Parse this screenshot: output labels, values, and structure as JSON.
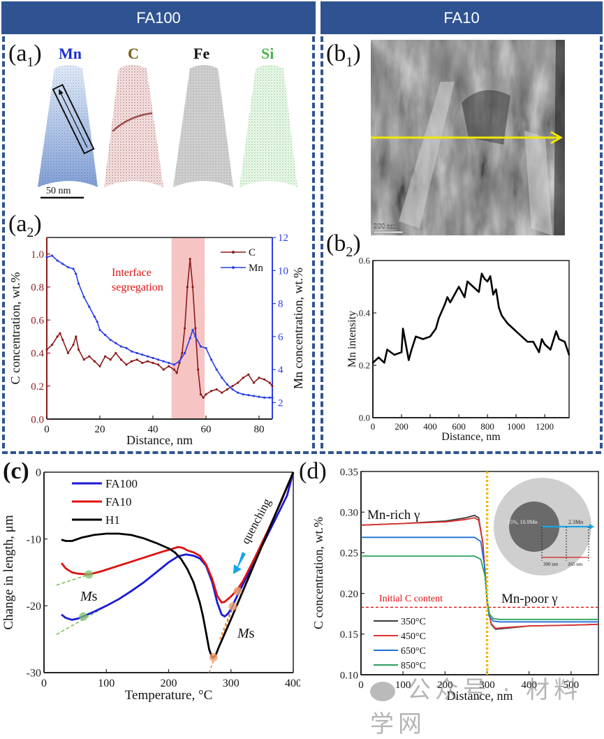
{
  "headers": {
    "left": "FA100",
    "right": "FA10"
  },
  "panel_labels": {
    "a1": "a",
    "a1_sub": "1",
    "a2": "a",
    "a2_sub": "2",
    "b1": "b",
    "b1_sub": "1",
    "b2": "b",
    "b2_sub": "2",
    "c": "c",
    "d": "d"
  },
  "apt_maps": {
    "elements": [
      {
        "label": "Mn",
        "color": "#1a2fd0"
      },
      {
        "label": "C",
        "color": "#7a5a10"
      },
      {
        "label": "Fe",
        "color": "#111111"
      },
      {
        "label": "Si",
        "color": "#4bb34b"
      }
    ],
    "scale_bar": "50 nm"
  },
  "tem": {
    "scale_bar": "200 nm"
  },
  "chart_data": [
    {
      "id": "a2",
      "type": "line",
      "xlabel": "Distance, nm",
      "ylabel": "C concentration, wt.%",
      "y2label": "Mn concentration, wt.%",
      "xlim": [
        0,
        85
      ],
      "ylim": [
        0,
        1.1
      ],
      "y2lim": [
        1,
        12
      ],
      "xticks": [
        0,
        20,
        40,
        60,
        80
      ],
      "yticks": [
        0.0,
        0.2,
        0.4,
        0.6,
        0.8,
        1.0
      ],
      "ytick_labels": [
        "0.0",
        "0.2",
        "0.4",
        "0.6",
        "0.8",
        "1.0"
      ],
      "y2ticks": [
        2,
        4,
        6,
        8,
        10,
        12
      ],
      "annotation": {
        "text_line1": "Interface",
        "text_line2": "segregation",
        "shaded_x": [
          47,
          59.5
        ]
      },
      "legend_position": "top-right",
      "series": [
        {
          "name": "C",
          "color": "#8b1a1a",
          "axis": "left",
          "x": [
            0,
            2,
            4,
            5,
            6,
            8,
            10,
            11,
            12,
            14,
            16,
            18,
            20,
            22,
            24,
            26,
            28,
            30,
            32,
            34,
            36,
            38,
            40,
            42,
            44,
            46,
            48,
            49,
            50,
            51,
            52,
            53,
            54,
            55,
            56,
            57,
            58,
            59,
            60,
            62,
            64,
            66,
            68,
            70,
            72,
            74,
            76,
            78,
            80,
            82,
            84,
            85
          ],
          "y": [
            0.42,
            0.45,
            0.5,
            0.52,
            0.48,
            0.4,
            0.45,
            0.5,
            0.42,
            0.36,
            0.38,
            0.35,
            0.32,
            0.38,
            0.36,
            0.4,
            0.36,
            0.33,
            0.35,
            0.36,
            0.34,
            0.35,
            0.34,
            0.33,
            0.3,
            0.32,
            0.3,
            0.28,
            0.34,
            0.4,
            0.55,
            0.8,
            0.97,
            0.8,
            0.55,
            0.3,
            0.15,
            0.13,
            0.15,
            0.17,
            0.18,
            0.16,
            0.18,
            0.2,
            0.22,
            0.25,
            0.27,
            0.22,
            0.25,
            0.24,
            0.22,
            0.2
          ]
        },
        {
          "name": "Mn",
          "color": "#2a3ee8",
          "axis": "right",
          "x": [
            0,
            2,
            4,
            6,
            8,
            10,
            11,
            12,
            14,
            16,
            18,
            19,
            20,
            22,
            24,
            26,
            28,
            30,
            32,
            34,
            36,
            38,
            40,
            42,
            44,
            46,
            48,
            50,
            52,
            54,
            55,
            56,
            58,
            60,
            62,
            64,
            66,
            68,
            70,
            72,
            74,
            76,
            78,
            80,
            82,
            84,
            85
          ],
          "y": [
            10.8,
            10.9,
            10.6,
            10.4,
            10.2,
            10.1,
            9.8,
            9.2,
            8.4,
            7.8,
            7.2,
            6.9,
            6.4,
            6.1,
            5.8,
            5.6,
            5.4,
            5.3,
            5.1,
            5.0,
            4.9,
            4.8,
            4.7,
            4.6,
            4.5,
            4.4,
            4.3,
            4.5,
            5.0,
            5.9,
            6.4,
            6.0,
            5.4,
            5.3,
            4.6,
            4.0,
            3.5,
            3.1,
            2.8,
            2.6,
            2.5,
            2.45,
            2.4,
            2.35,
            2.3,
            2.3,
            2.3
          ]
        }
      ]
    },
    {
      "id": "b2",
      "type": "line",
      "xlabel": "Distance, nm",
      "ylabel": "Mn intensity",
      "xlim": [
        0,
        1370
      ],
      "ylim": [
        0,
        0.6
      ],
      "xticks": [
        0,
        200,
        400,
        600,
        800,
        1000,
        1200
      ],
      "yticks": [
        0.0,
        0.2,
        0.4,
        0.6
      ],
      "ytick_labels": [
        "0.0",
        "0.2",
        "0.4",
        "0.6"
      ],
      "series": [
        {
          "name": "Mn",
          "color": "#000000",
          "x": [
            0,
            40,
            80,
            100,
            150,
            200,
            210,
            250,
            270,
            300,
            350,
            400,
            440,
            460,
            500,
            520,
            540,
            580,
            600,
            640,
            660,
            700,
            740,
            760,
            780,
            800,
            820,
            840,
            860,
            880,
            900,
            940,
            980,
            1000,
            1040,
            1080,
            1120,
            1160,
            1180,
            1200,
            1240,
            1280,
            1300,
            1340,
            1370
          ],
          "y": [
            0.21,
            0.23,
            0.21,
            0.26,
            0.24,
            0.25,
            0.34,
            0.22,
            0.26,
            0.31,
            0.3,
            0.31,
            0.34,
            0.38,
            0.43,
            0.46,
            0.44,
            0.48,
            0.5,
            0.46,
            0.52,
            0.5,
            0.48,
            0.55,
            0.53,
            0.52,
            0.54,
            0.47,
            0.49,
            0.42,
            0.39,
            0.36,
            0.34,
            0.33,
            0.31,
            0.29,
            0.29,
            0.25,
            0.3,
            0.28,
            0.26,
            0.33,
            0.3,
            0.29,
            0.24
          ]
        }
      ]
    },
    {
      "id": "c",
      "type": "line",
      "xlabel": "Temperature, °C",
      "ylabel": "Change in length, μm",
      "xlim": [
        0,
        400
      ],
      "ylim": [
        -30,
        0
      ],
      "xticks": [
        0,
        100,
        200,
        300,
        400
      ],
      "yticks": [
        0,
        -10,
        -20,
        -30
      ],
      "ytick_labels": [
        "0",
        "-10",
        "-20",
        "-30"
      ],
      "legend_position": "top-left",
      "annotations": [
        {
          "text": "quenching",
          "arrow_color": "#1aa3e8"
        },
        {
          "text": "Ms",
          "italic_part": "M",
          "near": "green markers"
        },
        {
          "text": "Ms",
          "italic_part": "M",
          "near": "orange markers"
        }
      ],
      "ms_points_green": [
        {
          "x": 72,
          "y": -15.3
        },
        {
          "x": 63,
          "y": -21.6
        }
      ],
      "ms_points_orange": [
        {
          "x": 311,
          "y": -17.8
        },
        {
          "x": 303,
          "y": -20.1
        },
        {
          "x": 272,
          "y": -27.7
        }
      ],
      "series": [
        {
          "name": "FA100",
          "color": "#1a1ad8",
          "x": [
            28,
            35,
            45,
            55,
            65,
            80,
            100,
            120,
            140,
            160,
            180,
            200,
            215,
            228,
            240,
            250,
            260,
            270,
            278,
            285,
            290,
            295,
            300,
            310,
            330,
            350,
            370,
            390,
            400
          ],
          "y": [
            -21.3,
            -21.8,
            -22.1,
            -21.9,
            -21.5,
            -20.9,
            -20.0,
            -19.0,
            -17.8,
            -16.5,
            -15.0,
            -13.5,
            -12.6,
            -12.3,
            -12.5,
            -12.9,
            -14.0,
            -16.5,
            -19.5,
            -21.3,
            -21.6,
            -21.2,
            -20.5,
            -18.5,
            -14.8,
            -11.0,
            -7.3,
            -3.5,
            0
          ]
        },
        {
          "name": "FA10",
          "color": "#e01010",
          "x": [
            28,
            35,
            45,
            55,
            72,
            90,
            110,
            130,
            150,
            170,
            190,
            205,
            215,
            222,
            230,
            240,
            250,
            260,
            270,
            278,
            285,
            290,
            295,
            300,
            310,
            320,
            340,
            360,
            380,
            400
          ],
          "y": [
            -13.6,
            -14.4,
            -15.0,
            -15.2,
            -15.3,
            -14.9,
            -14.3,
            -13.7,
            -13.1,
            -12.5,
            -11.9,
            -11.5,
            -11.2,
            -11.3,
            -11.7,
            -12.0,
            -12.5,
            -13.8,
            -16.0,
            -18.5,
            -19.5,
            -19.4,
            -19.0,
            -18.6,
            -17.6,
            -16.2,
            -12.5,
            -8.6,
            -4.5,
            0
          ]
        },
        {
          "name": "H1",
          "color": "#000000",
          "x": [
            28,
            35,
            45,
            60,
            80,
            100,
            120,
            140,
            160,
            180,
            200,
            210,
            220,
            230,
            240,
            250,
            255,
            260,
            265,
            270,
            275,
            280,
            300,
            320,
            340,
            360,
            380,
            400
          ],
          "y": [
            -10.1,
            -10.3,
            -10.3,
            -9.8,
            -9.4,
            -9.2,
            -9.2,
            -9.4,
            -9.9,
            -10.6,
            -11.4,
            -12.0,
            -13.0,
            -14.5,
            -16.5,
            -19.5,
            -21.5,
            -24.0,
            -26.5,
            -27.8,
            -27.5,
            -26.3,
            -22.0,
            -17.6,
            -13.2,
            -8.8,
            -4.4,
            0
          ]
        }
      ]
    },
    {
      "id": "d",
      "type": "line",
      "xlabel": "Distance, nm",
      "ylabel": "C concentration, wt.%",
      "xlim": [
        0,
        565
      ],
      "ylim": [
        0.1,
        0.35
      ],
      "xticks": [
        0,
        100,
        200,
        300,
        400,
        500
      ],
      "yticks": [
        0.1,
        0.15,
        0.2,
        0.25,
        0.3,
        0.35
      ],
      "ytick_labels": [
        "0.10",
        "0.15",
        "0.20",
        "0.25",
        "0.30",
        "0.35"
      ],
      "interface_x": 300,
      "initial_c": 0.183,
      "annotations": [
        {
          "text": "Mn-rich γ"
        },
        {
          "text": "Mn-poor γ"
        },
        {
          "text": "Initial C content",
          "color": "#e01010"
        }
      ],
      "inset": {
        "core_label": "15%, 10.9Mn",
        "shell_label": "2.3Mn",
        "dim1": "300 nm",
        "dim2": "265 nm"
      },
      "legend_position": "bottom-left",
      "series": [
        {
          "name": "350°C",
          "color": "#3a3a3a",
          "x": [
            0,
            100,
            200,
            250,
            270,
            280,
            290,
            300,
            310,
            320,
            340,
            400,
            500,
            565
          ],
          "y": [
            0.284,
            0.286,
            0.289,
            0.293,
            0.296,
            0.293,
            0.262,
            0.19,
            0.162,
            0.156,
            0.157,
            0.16,
            0.161,
            0.162
          ]
        },
        {
          "name": "450°C",
          "color": "#e03030",
          "x": [
            0,
            100,
            200,
            250,
            270,
            280,
            290,
            300,
            310,
            320,
            340,
            400,
            500,
            565
          ],
          "y": [
            0.284,
            0.286,
            0.288,
            0.291,
            0.293,
            0.29,
            0.262,
            0.19,
            0.163,
            0.157,
            0.158,
            0.16,
            0.161,
            0.162
          ]
        },
        {
          "name": "650°C",
          "color": "#1f6fd8",
          "x": [
            0,
            100,
            200,
            270,
            285,
            295,
            300,
            305,
            315,
            330,
            400,
            500,
            565
          ],
          "y": [
            0.269,
            0.269,
            0.269,
            0.269,
            0.264,
            0.23,
            0.19,
            0.172,
            0.166,
            0.165,
            0.165,
            0.165,
            0.165
          ]
        },
        {
          "name": "850°C",
          "color": "#2aa060",
          "x": [
            0,
            100,
            200,
            270,
            285,
            295,
            300,
            305,
            315,
            330,
            400,
            500,
            565
          ],
          "y": [
            0.246,
            0.246,
            0.246,
            0.246,
            0.242,
            0.222,
            0.195,
            0.175,
            0.169,
            0.168,
            0.168,
            0.168,
            0.168
          ]
        }
      ]
    }
  ],
  "watermark": {
    "text": "公众号 · 材料学网"
  }
}
